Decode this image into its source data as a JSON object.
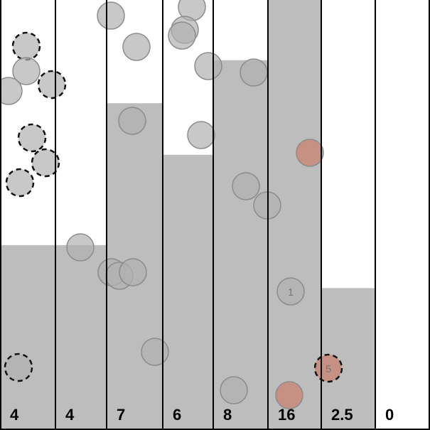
{
  "game": {
    "colors": {
      "background": "#ffffff",
      "fill": "#bdbdbd",
      "divider": "#000000",
      "ball": "#b0b0b0",
      "ball_stroke": "#8c8c8c",
      "red_ball": "#c9826f"
    },
    "columns": [
      {
        "label": "4",
        "fill_level": 0.43
      },
      {
        "label": "4",
        "fill_level": 0.43
      },
      {
        "label": "7",
        "fill_level": 0.76
      },
      {
        "label": "6",
        "fill_level": 0.64
      },
      {
        "label": "8",
        "fill_level": 0.86
      },
      {
        "label": "16",
        "fill_level": 1.0
      },
      {
        "label": "2.5",
        "fill_level": 0.33
      },
      {
        "label": "0",
        "fill_level": 0.0
      }
    ],
    "balls": [
      {
        "dashed": true,
        "red": false,
        "number": ""
      },
      {
        "dashed": false,
        "red": false,
        "number": ""
      },
      {
        "dashed": false,
        "red": false,
        "number": ""
      },
      {
        "dashed": true,
        "red": false,
        "number": ""
      },
      {
        "dashed": true,
        "red": false,
        "number": ""
      },
      {
        "dashed": true,
        "red": false,
        "number": ""
      },
      {
        "dashed": true,
        "red": false,
        "number": ""
      },
      {
        "dashed": true,
        "red": false,
        "number": ""
      },
      {
        "dashed": false,
        "red": false,
        "number": ""
      },
      {
        "dashed": false,
        "red": false,
        "number": ""
      },
      {
        "dashed": false,
        "red": false,
        "number": ""
      },
      {
        "dashed": false,
        "red": false,
        "number": ""
      },
      {
        "dashed": false,
        "red": false,
        "number": ""
      },
      {
        "dashed": false,
        "red": false,
        "number": ""
      },
      {
        "dashed": false,
        "red": false,
        "number": ""
      },
      {
        "dashed": false,
        "red": false,
        "number": ""
      },
      {
        "dashed": false,
        "red": false,
        "number": ""
      },
      {
        "dashed": false,
        "red": false,
        "number": ""
      },
      {
        "dashed": false,
        "red": false,
        "number": ""
      },
      {
        "dashed": false,
        "red": false,
        "number": ""
      },
      {
        "dashed": false,
        "red": false,
        "number": ""
      },
      {
        "dashed": false,
        "red": false,
        "number": ""
      },
      {
        "dashed": false,
        "red": false,
        "number": ""
      },
      {
        "dashed": false,
        "red": false,
        "number": ""
      },
      {
        "dashed": false,
        "red": false,
        "number": ""
      },
      {
        "dashed": false,
        "red": true,
        "number": ""
      },
      {
        "dashed": false,
        "red": false,
        "number": "1"
      },
      {
        "dashed": false,
        "red": true,
        "number": ""
      },
      {
        "dashed": true,
        "red": true,
        "number": "5"
      }
    ]
  }
}
